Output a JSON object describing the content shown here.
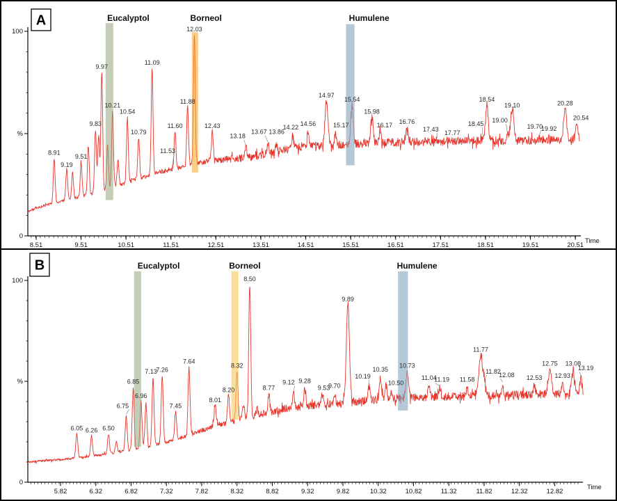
{
  "figure": {
    "description": "Two stacked gas chromatograms with highlighted compound bands",
    "trace_color": "#e8352c",
    "axis_color": "#000000",
    "label_color": "#2a2a2a"
  },
  "chart_data": [
    {
      "panel": "A",
      "type": "line",
      "panel_letter": "A",
      "y_axis": {
        "top": "100",
        "mid": "%",
        "bottom": "0"
      },
      "x_axis": {
        "label": "Time",
        "minor_step": 0.1,
        "tick_values": [
          8.51,
          9.51,
          10.51,
          11.51,
          12.51,
          13.51,
          14.51,
          15.51,
          16.51,
          17.51,
          18.51,
          19.51,
          20.51
        ],
        "tick_labels": [
          "8.51",
          "9.51",
          "10.51",
          "11.51",
          "12.51",
          "13.51",
          "14.51",
          "15.51",
          "16.51",
          "17.51",
          "18.51",
          "19.51",
          "20.51"
        ]
      },
      "x_range": [
        8.325,
        20.6
      ],
      "ylim": [
        0,
        100
      ],
      "trace_color": "#e8352c",
      "noise_seed": 3,
      "default_peak_sigma": 0.02,
      "baseline_pct": [
        [
          8.32,
          12
        ],
        [
          8.8,
          15.5
        ],
        [
          9.3,
          18
        ],
        [
          9.8,
          21
        ],
        [
          10.3,
          24.5
        ],
        [
          10.8,
          28
        ],
        [
          11.3,
          31.5
        ],
        [
          11.7,
          33.5
        ],
        [
          12.0,
          35
        ],
        [
          12.4,
          37
        ],
        [
          12.9,
          37.5
        ],
        [
          13.4,
          39
        ],
        [
          14.0,
          42
        ],
        [
          14.6,
          44
        ],
        [
          15.2,
          44.5
        ],
        [
          16.0,
          45.5
        ],
        [
          17.0,
          46
        ],
        [
          18.0,
          46.5
        ],
        [
          19.0,
          46.5
        ],
        [
          20.0,
          47
        ],
        [
          20.66,
          47.5
        ]
      ],
      "noise_pct": [
        [
          8.32,
          0.6
        ],
        [
          10.5,
          0.9
        ],
        [
          11.8,
          1.2
        ],
        [
          12.6,
          1.6
        ],
        [
          13.4,
          2.0
        ],
        [
          20.66,
          2.1
        ]
      ],
      "peaks": [
        {
          "t": 8.91,
          "h": 38,
          "label": "8.91"
        },
        {
          "t": 9.19,
          "h": 33,
          "label": "9.19",
          "dy": 3
        },
        {
          "t": 9.51,
          "h": 36,
          "label": "9.51"
        },
        {
          "t": 9.83,
          "h": 52,
          "label": "9.83"
        },
        {
          "t": 9.97,
          "h": 80,
          "label": "9.97"
        },
        {
          "t": 10.21,
          "h": 61,
          "label": "10.21"
        },
        {
          "t": 10.54,
          "h": 58,
          "label": "10.54"
        },
        {
          "t": 10.79,
          "h": 48,
          "label": "10.79"
        },
        {
          "t": 11.09,
          "h": 82,
          "label": "11.09"
        },
        {
          "t": 11.53,
          "h": 32,
          "label": "11.53",
          "dx": -6,
          "dy": -20,
          "lead": true
        },
        {
          "t": 11.6,
          "h": 51,
          "label": "11.60"
        },
        {
          "t": 11.88,
          "h": 63,
          "label": "11.88"
        },
        {
          "t": 12.03,
          "h": 99,
          "label": "12.03",
          "dy": 2
        },
        {
          "t": 12.43,
          "h": 51,
          "label": "12.43"
        },
        {
          "t": 13.18,
          "h": 43,
          "label": "13.18",
          "dx": -12,
          "dy": -9,
          "lead": true
        },
        {
          "t": 13.67,
          "h": 45,
          "label": "13.67",
          "dx": -13,
          "dy": -9,
          "lead": true
        },
        {
          "t": 13.86,
          "h": 45,
          "label": "13.86",
          "dy": -9
        },
        {
          "t": 14.22,
          "h": 49,
          "label": "14.22",
          "dx": -3,
          "dy": -4
        },
        {
          "t": 14.56,
          "h": 51,
          "label": "14.56",
          "dy": -3
        },
        {
          "t": 14.97,
          "h": 66,
          "label": "14.97",
          "w": 0.032
        },
        {
          "t": 15.17,
          "h": 50,
          "label": "15.17",
          "dx": 8,
          "dy": -4
        },
        {
          "t": 15.54,
          "h": 64,
          "label": "15.54",
          "w": 0.028
        },
        {
          "t": 15.98,
          "h": 58,
          "label": "15.98",
          "w": 0.026
        },
        {
          "t": 16.17,
          "h": 52,
          "label": "16.17",
          "dx": 6,
          "dy": 2
        },
        {
          "t": 16.76,
          "h": 53,
          "label": "16.76",
          "w": 0.028
        },
        {
          "t": 17.43,
          "h": 47,
          "label": "17.43",
          "dx": -9,
          "dy": -7,
          "lead": true
        },
        {
          "t": 17.77,
          "h": 46,
          "label": "17.77",
          "dy": -5
        },
        {
          "t": 18.45,
          "h": 48,
          "label": "18.45",
          "dx": -10,
          "dy": -12,
          "lead": true
        },
        {
          "t": 18.54,
          "h": 64,
          "label": "18.54",
          "w": 0.03
        },
        {
          "t": 19.0,
          "h": 49,
          "label": "19.00",
          "dx": -11,
          "dy": -14,
          "lead": true
        },
        {
          "t": 19.1,
          "h": 61,
          "label": "19.10",
          "w": 0.036
        },
        {
          "t": 19.7,
          "h": 48,
          "label": "19.70",
          "dx": -6,
          "dy": -8,
          "lead": true
        },
        {
          "t": 19.92,
          "h": 47,
          "label": "19.92",
          "dy": -8
        },
        {
          "t": 20.28,
          "h": 62,
          "label": "20.28",
          "w": 0.032
        },
        {
          "t": 20.54,
          "h": 55,
          "label": "20.54",
          "dx": 6,
          "w": 0.024
        }
      ],
      "minor_peaks": [
        [
          9.32,
          31
        ],
        [
          9.67,
          44
        ],
        [
          9.9,
          49
        ],
        [
          10.1,
          44
        ],
        [
          10.33,
          37
        ]
      ],
      "highlights": [
        {
          "name": "Eucalyptol",
          "t0": 10.055,
          "t1": 10.225,
          "y_top_pct": 104,
          "y_bot_pct": 17.5,
          "label_t": 10.56,
          "color": "rgba(148,164,124,0.55)"
        },
        {
          "name": "Borneol",
          "t0": 11.975,
          "t1": 12.115,
          "y_top_pct": 99.5,
          "y_bot_pct": 31,
          "label_t": 12.29,
          "color": "rgba(248,165,40,0.55)"
        },
        {
          "name": "Humulene",
          "t0": 15.405,
          "t1": 15.595,
          "y_top_pct": 103.5,
          "y_bot_pct": 34.5,
          "label_t": 15.92,
          "color": "rgba(130,165,190,0.6)"
        }
      ]
    },
    {
      "panel": "B",
      "type": "line",
      "panel_letter": "B",
      "y_axis": {
        "top": "100",
        "mid": "%",
        "bottom": "0"
      },
      "x_axis": {
        "label": "Time",
        "minor_step": 0.05,
        "tick_values": [
          5.82,
          6.32,
          6.82,
          7.32,
          7.82,
          8.32,
          8.82,
          9.32,
          9.82,
          10.32,
          10.82,
          11.32,
          11.82,
          12.32,
          12.82
        ],
        "tick_labels": [
          "5.82",
          "6.32",
          "6.82",
          "7.32",
          "7.82",
          "8.32",
          "8.82",
          "9.32",
          "9.82",
          "10.32",
          "10.82",
          "11.32",
          "11.82",
          "12.32",
          "12.82"
        ]
      },
      "x_range": [
        5.357,
        13.22
      ],
      "ylim": [
        0,
        100
      ],
      "trace_color": "#e8352c",
      "noise_seed": 11,
      "default_peak_sigma": 0.014,
      "baseline_pct": [
        [
          5.36,
          10
        ],
        [
          5.9,
          11.5
        ],
        [
          6.4,
          13.5
        ],
        [
          6.9,
          16.5
        ],
        [
          7.3,
          19.5
        ],
        [
          7.7,
          24
        ],
        [
          8.0,
          28
        ],
        [
          8.3,
          30.5
        ],
        [
          8.7,
          34
        ],
        [
          9.1,
          37
        ],
        [
          9.5,
          38.5
        ],
        [
          9.9,
          39.5
        ],
        [
          10.3,
          41
        ],
        [
          10.8,
          42
        ],
        [
          11.4,
          42.5
        ],
        [
          12.0,
          43
        ],
        [
          12.6,
          43.5
        ],
        [
          13.22,
          44
        ]
      ],
      "noise_pct": [
        [
          5.36,
          0.5
        ],
        [
          7.2,
          0.7
        ],
        [
          8.0,
          1.2
        ],
        [
          8.8,
          1.9
        ],
        [
          9.6,
          2.0
        ],
        [
          13.22,
          2.1
        ]
      ],
      "peaks": [
        {
          "t": 6.05,
          "h": 24,
          "label": "6.05"
        },
        {
          "t": 6.26,
          "h": 23,
          "label": "6.26"
        },
        {
          "t": 6.5,
          "h": 24,
          "label": "6.50"
        },
        {
          "t": 6.75,
          "h": 33,
          "label": "6.75",
          "dx": -5,
          "dy": -6,
          "lead": true
        },
        {
          "t": 6.85,
          "h": 47,
          "label": "6.85"
        },
        {
          "t": 6.96,
          "h": 40,
          "label": "6.96"
        },
        {
          "t": 7.13,
          "h": 52,
          "label": "7.13",
          "dx": -3
        },
        {
          "t": 7.26,
          "h": 53,
          "label": "7.26"
        },
        {
          "t": 7.45,
          "h": 35,
          "label": "7.45"
        },
        {
          "t": 7.64,
          "h": 57,
          "label": "7.64"
        },
        {
          "t": 8.01,
          "h": 38,
          "label": "8.01"
        },
        {
          "t": 8.2,
          "h": 43,
          "label": "8.20"
        },
        {
          "t": 8.32,
          "h": 55,
          "label": "8.32"
        },
        {
          "t": 8.5,
          "h": 98,
          "label": "8.50"
        },
        {
          "t": 8.77,
          "h": 43,
          "label": "8.77",
          "dy": -3
        },
        {
          "t": 9.12,
          "h": 45,
          "label": "9.12",
          "dx": -7,
          "dy": -5,
          "lead": true
        },
        {
          "t": 9.28,
          "h": 46,
          "label": "9.28",
          "dy": -4
        },
        {
          "t": 9.53,
          "h": 43,
          "label": "9.53",
          "dx": 2,
          "dy": -3
        },
        {
          "t": 9.7,
          "h": 44,
          "label": "9.70",
          "dy": -3
        },
        {
          "t": 9.89,
          "h": 88,
          "label": "9.89",
          "w": 0.022
        },
        {
          "t": 10.19,
          "h": 48,
          "label": "10.19",
          "dx": -9,
          "dy": -5,
          "lead": true
        },
        {
          "t": 10.35,
          "h": 52,
          "label": "10.35",
          "dy": -3
        },
        {
          "t": 10.5,
          "h": 45,
          "label": "10.50",
          "dx": 7,
          "dy": -4
        },
        {
          "t": 10.73,
          "h": 55,
          "label": "10.73",
          "w": 0.018
        },
        {
          "t": 11.04,
          "h": 48,
          "label": "11.04",
          "dy": -3
        },
        {
          "t": 11.19,
          "h": 47,
          "label": "11.19",
          "dy": -3,
          "lead": true,
          "dx": 3
        },
        {
          "t": 11.58,
          "h": 47,
          "label": "11.58",
          "dy": -3
        },
        {
          "t": 11.77,
          "h": 63,
          "label": "11.77",
          "w": 0.026
        },
        {
          "t": 11.82,
          "h": 50,
          "label": "11.82",
          "dx": 13,
          "dy": -6,
          "lead": true
        },
        {
          "t": 12.08,
          "h": 49,
          "label": "12.08",
          "dx": 6,
          "dy": -4,
          "lead": true
        },
        {
          "t": 12.53,
          "h": 48,
          "label": "12.53",
          "dy": -3
        },
        {
          "t": 12.75,
          "h": 56,
          "label": "12.75",
          "w": 0.02
        },
        {
          "t": 12.93,
          "h": 49,
          "label": "12.93",
          "dy": -3
        },
        {
          "t": 13.08,
          "h": 56,
          "label": "13.08",
          "w": 0.02
        },
        {
          "t": 13.19,
          "h": 52,
          "label": "13.19",
          "dx": 7,
          "dy": -5,
          "lead": true
        }
      ],
      "minor_peaks": [
        [
          6.61,
          20
        ],
        [
          7.03,
          39
        ],
        [
          8.41,
          38
        ],
        [
          8.6,
          36
        ],
        [
          10.43,
          48
        ]
      ],
      "highlights": [
        {
          "name": "Eucalyptol",
          "t0": 6.862,
          "t1": 6.962,
          "y_top_pct": 104.5,
          "y_bot_pct": 17.5,
          "label_t": 7.21,
          "color": "rgba(148,164,124,0.55)"
        },
        {
          "name": "Borneol",
          "t0": 8.24,
          "t1": 8.34,
          "y_top_pct": 104.5,
          "y_bot_pct": 31,
          "label_t": 8.43,
          "color": "rgba(250,200,90,0.6)"
        },
        {
          "name": "Humulene",
          "t0": 10.6,
          "t1": 10.74,
          "y_top_pct": 104.5,
          "y_bot_pct": 35.5,
          "label_t": 10.87,
          "color": "rgba(130,165,190,0.6)"
        }
      ]
    }
  ]
}
